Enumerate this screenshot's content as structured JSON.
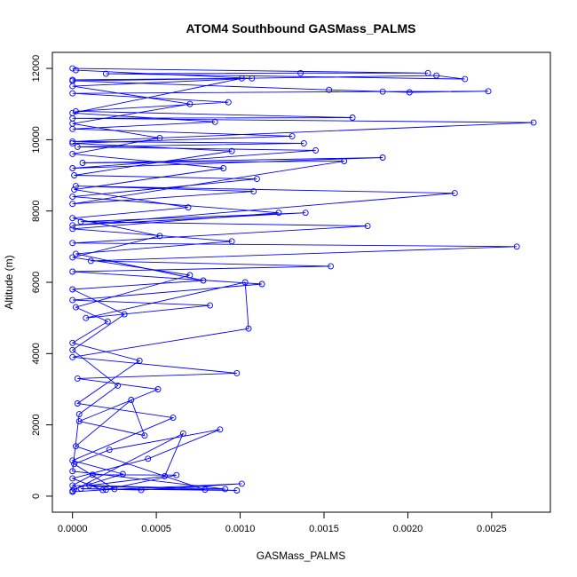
{
  "chart_data": {
    "type": "line",
    "title": "ATOM4 Southbound GASMass_PALMS",
    "xlabel": "GASMass_PALMS",
    "ylabel": "Altitude (m)",
    "xlim": [
      -0.00012,
      0.00285
    ],
    "ylim": [
      -450,
      12450
    ],
    "x_ticks": [
      {
        "value": 0.0,
        "label": "0.0000"
      },
      {
        "value": 0.0005,
        "label": "0.0005"
      },
      {
        "value": 0.001,
        "label": "0.0010"
      },
      {
        "value": 0.0015,
        "label": "0.0015"
      },
      {
        "value": 0.002,
        "label": "0.0020"
      },
      {
        "value": 0.0025,
        "label": "0.0025"
      }
    ],
    "y_ticks": [
      {
        "value": 0,
        "label": "0"
      },
      {
        "value": 2000,
        "label": "2000"
      },
      {
        "value": 4000,
        "label": "4000"
      },
      {
        "value": 6000,
        "label": "6000"
      },
      {
        "value": 8000,
        "label": "8000"
      },
      {
        "value": 10000,
        "label": "10000"
      },
      {
        "value": 12000,
        "label": "12000"
      }
    ],
    "grid": false,
    "marker": "open-circle",
    "color": "#0000ff",
    "series": [
      {
        "values": [
          [
            0.0,
            120
          ],
          [
            0.0002,
            180
          ],
          [
            0.00101,
            350
          ],
          [
            0.00041,
            170
          ],
          [
            5e-05,
            210
          ],
          [
            0.00098,
            160
          ],
          [
            0.0,
            300
          ],
          [
            0.00012,
            600
          ],
          [
            0.00062,
            590
          ],
          [
            0.00018,
            170
          ],
          [
            0.0,
            500
          ],
          [
            0.00045,
            1050
          ],
          [
            0.00088,
            1870
          ],
          [
            0.00022,
            1300
          ],
          [
            1e-05,
            900
          ],
          [
            0.00025,
            200
          ],
          [
            0.00079,
            180
          ],
          [
            2e-05,
            1400
          ],
          [
            0.00035,
            2700
          ],
          [
            0.00043,
            1700
          ],
          [
            4e-05,
            2100
          ],
          [
            0.00051,
            3000
          ],
          [
            3e-05,
            3300
          ],
          [
            0.00098,
            3450
          ],
          [
            0.0,
            3900
          ],
          [
            0.00105,
            4700
          ],
          [
            0.00103,
            6000
          ],
          [
            8e-05,
            5000
          ],
          [
            0.00082,
            5350
          ],
          [
            0.0,
            5500
          ],
          [
            0.00113,
            5950
          ],
          [
            0.0,
            6300
          ],
          [
            0.00154,
            6450
          ],
          [
            0.00011,
            6600
          ],
          [
            0.00265,
            7000
          ],
          [
            0.0,
            7100
          ],
          [
            0.00176,
            7580
          ],
          [
            5e-05,
            7700
          ],
          [
            0.00139,
            7950
          ],
          [
            0.0,
            7600
          ],
          [
            0.00228,
            8500
          ],
          [
            2e-05,
            8700
          ],
          [
            0.00108,
            8550
          ],
          [
            0.0,
            8200
          ],
          [
            0.00162,
            9400
          ],
          [
            6e-05,
            9350
          ],
          [
            0.00185,
            9500
          ],
          [
            0.0,
            9200
          ],
          [
            0.00145,
            9700
          ],
          [
            3e-05,
            9800
          ],
          [
            0.00138,
            9900
          ],
          [
            0.0,
            9950
          ],
          [
            0.00275,
            10480
          ],
          [
            0.0,
            10600
          ],
          [
            0.00167,
            10620
          ],
          [
            2e-05,
            10800
          ],
          [
            0.00093,
            11050
          ],
          [
            0.0,
            11300
          ],
          [
            0.00185,
            11350
          ],
          [
            0.00248,
            11360
          ],
          [
            0.00201,
            11330
          ],
          [
            0.00153,
            11400
          ],
          [
            0.0,
            11650
          ],
          [
            0.00217,
            11800
          ],
          [
            0.00234,
            11700
          ],
          [
            0.0002,
            11850
          ],
          [
            0.00136,
            11870
          ],
          [
            0.00212,
            11870
          ],
          [
            0.0,
            12000
          ]
        ]
      },
      {
        "values": [
          [
            0.0,
            150
          ],
          [
            0.00066,
            1760
          ],
          [
            0.00055,
            560
          ],
          [
            0.0001,
            300
          ],
          [
            0.00091,
            200
          ],
          [
            0.0,
            700
          ],
          [
            4e-05,
            2300
          ],
          [
            0.00027,
            3100
          ],
          [
            0.0,
            4100
          ],
          [
            0.00031,
            5100
          ],
          [
            0.0,
            5800
          ],
          [
            0.00078,
            6050
          ],
          [
            2e-05,
            6800
          ],
          [
            0.00095,
            7150
          ],
          [
            0.0,
            7500
          ],
          [
            0.00123,
            7950
          ],
          [
            0.0,
            8400
          ],
          [
            0.0011,
            8900
          ],
          [
            1e-05,
            9000
          ],
          [
            0.00095,
            9680
          ],
          [
            0.0,
            9900
          ],
          [
            0.00131,
            10100
          ],
          [
            0.0,
            10300
          ],
          [
            0.00085,
            10500
          ],
          [
            0.0,
            10750
          ],
          [
            0.00101,
            11720
          ],
          [
            0.0,
            11680
          ]
        ]
      },
      {
        "values": [
          [
            1e-05,
            200
          ],
          [
            0.0003,
            620
          ],
          [
            0.0,
            1000
          ],
          [
            0.0006,
            2200
          ],
          [
            3e-05,
            2600
          ],
          [
            0.0004,
            3800
          ],
          [
            0.0,
            4300
          ],
          [
            0.00021,
            4900
          ],
          [
            2e-05,
            5300
          ],
          [
            0.0007,
            6200
          ],
          [
            0.0,
            6700
          ],
          [
            0.00052,
            7300
          ],
          [
            0.0,
            7800
          ],
          [
            0.00069,
            8100
          ],
          [
            1e-05,
            8600
          ],
          [
            0.0009,
            9200
          ],
          [
            0.0,
            9600
          ],
          [
            0.00052,
            10050
          ],
          [
            0.0,
            10450
          ],
          [
            0.0007,
            11000
          ],
          [
            0.0,
            11500
          ],
          [
            0.00107,
            11720
          ],
          [
            2e-05,
            11950
          ]
        ]
      }
    ]
  }
}
